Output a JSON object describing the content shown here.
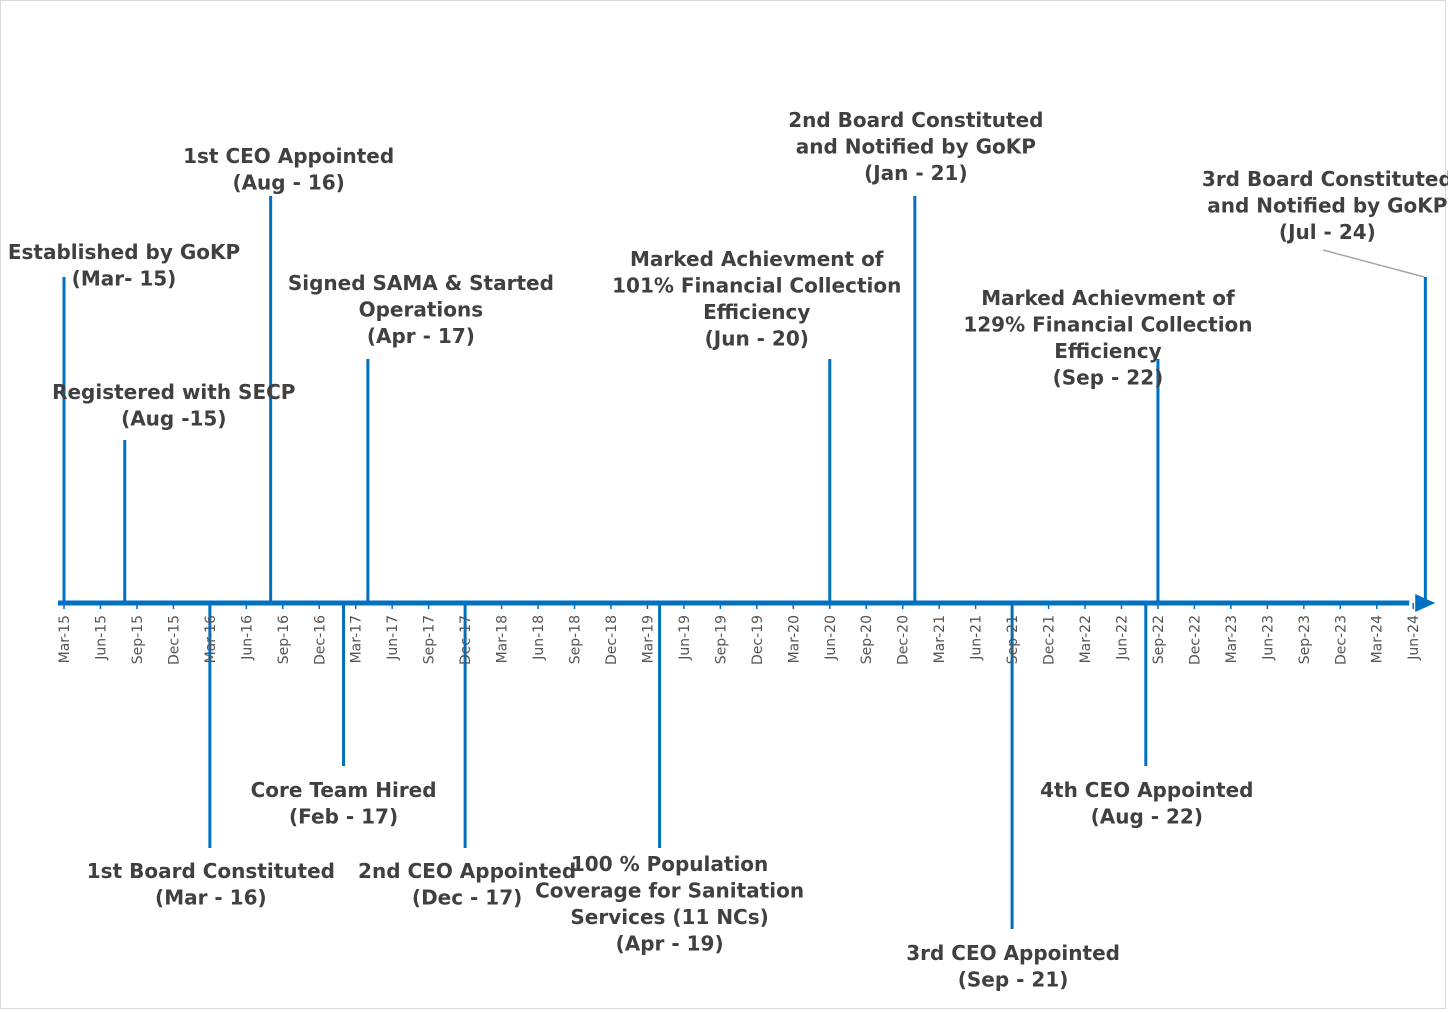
{
  "chart_data": {
    "type": "timeline",
    "title": "",
    "axis": {
      "start": "Mar-15",
      "end": "Jun-24",
      "tick_step_months": 3,
      "ticks": [
        "Mar-15",
        "Jun-15",
        "Sep-15",
        "Dec-15",
        "Mar-16",
        "Jun-16",
        "Sep-16",
        "Dec-16",
        "Mar-17",
        "Jun-17",
        "Sep-17",
        "Dec-17",
        "Mar-18",
        "Jun-18",
        "Sep-18",
        "Dec-18",
        "Mar-19",
        "Jun-19",
        "Sep-19",
        "Dec-19",
        "Mar-20",
        "Jun-20",
        "Sep-20",
        "Dec-20",
        "Mar-21",
        "Jun-21",
        "Sep-21",
        "Dec-21",
        "Mar-22",
        "Jun-22",
        "Sep-22",
        "Dec-22",
        "Mar-23",
        "Jun-23",
        "Sep-23",
        "Dec-23",
        "Mar-24",
        "Jun-24"
      ]
    },
    "events": [
      {
        "id": "established",
        "month_index": 0,
        "side": "above",
        "level": 326,
        "label_lines": [
          "Established by GoKP",
          "(Mar- 15)"
        ]
      },
      {
        "id": "registered-secp",
        "month_index": 5,
        "side": "above",
        "level": 163,
        "label_lines": [
          "Registered with SECP",
          "(Aug -15)"
        ]
      },
      {
        "id": "first-board",
        "month_index": 12,
        "side": "below",
        "level": 245,
        "label_lines": [
          "1st Board Constituted",
          "(Mar - 16)"
        ]
      },
      {
        "id": "first-ceo",
        "month_index": 17,
        "side": "above",
        "level": 407,
        "label_lines": [
          "1st CEO Appointed",
          "(Aug - 16)"
        ]
      },
      {
        "id": "core-team",
        "month_index": 23,
        "side": "below",
        "level": 163,
        "label_lines": [
          "Core Team Hired",
          "(Feb - 17)"
        ]
      },
      {
        "id": "sama",
        "month_index": 25,
        "side": "above",
        "level": 244,
        "label_lines": [
          "Signed SAMA & Started",
          "Operations",
          "(Apr - 17)"
        ]
      },
      {
        "id": "second-ceo",
        "month_index": 33,
        "side": "below",
        "level": 245,
        "label_lines": [
          "2nd CEO Appointed",
          "(Dec - 17)"
        ]
      },
      {
        "id": "sanitation",
        "month_index": 49,
        "side": "below",
        "level": 245,
        "label_lines": [
          "100 % Population",
          "Coverage for Sanitation",
          "Services (11 NCs)",
          "(Apr - 19)"
        ]
      },
      {
        "id": "collection-101",
        "month_index": 63,
        "side": "above",
        "level": 244,
        "label_lines": [
          "Marked Achievment of",
          "101% Financial Collection",
          "Efficiency",
          "(Jun - 20)"
        ]
      },
      {
        "id": "second-board",
        "month_index": 70,
        "side": "above",
        "level": 407,
        "label_lines": [
          "2nd Board Constituted",
          "and Notified by GoKP",
          "(Jan - 21)"
        ]
      },
      {
        "id": "third-ceo",
        "month_index": 78,
        "side": "below",
        "level": 326,
        "label_lines": [
          "3rd CEO Appointed",
          "(Sep - 21)"
        ]
      },
      {
        "id": "fourth-ceo",
        "month_index": 89,
        "side": "below",
        "level": 163,
        "label_lines": [
          "4th CEO Appointed",
          "(Aug - 22)"
        ]
      },
      {
        "id": "collection-129",
        "month_index": 90,
        "side": "above",
        "level": 244,
        "label_lines": [
          "Marked Achievment of",
          "129% Financial Collection",
          "Efficiency",
          "(Sep - 22)"
        ]
      },
      {
        "id": "third-board",
        "month_index": 112,
        "side": "above",
        "level": 326,
        "label_lines": [
          "3rd Board Constituted",
          "and Notified by GoKP",
          "(Jul - 24)"
        ]
      }
    ],
    "colors": {
      "axis": "#0070c0",
      "event_line": "#0070c0",
      "text": "#404040",
      "tick_text": "#555555",
      "leader": "#a6a6a6"
    }
  }
}
